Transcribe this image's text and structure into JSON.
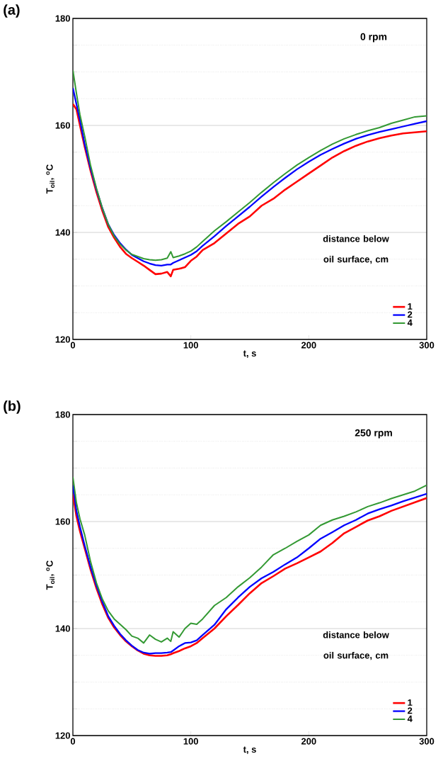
{
  "chart_data": [
    {
      "type": "line",
      "title": "(a)",
      "xlabel": "t, s",
      "ylabel": "T$_{oil}$, $^{o}$C",
      "legend_title": "distance below oil surface, cm",
      "annotations": [
        "0 rpm"
      ],
      "legend": "bottom right",
      "grid": "y",
      "xlim": [
        0,
        300
      ],
      "ylim": [
        120,
        180
      ],
      "xticks": [
        0,
        100,
        200,
        300
      ],
      "yticks": [
        120,
        {
          "value": 125,
          "label": null
        },
        {
          "value": 130,
          "label": null
        },
        {
          "value": 135,
          "label": null
        },
        140,
        {
          "value": 145,
          "label": null
        },
        {
          "value": 150,
          "label": null
        },
        {
          "value": 155,
          "label": null
        },
        160,
        {
          "value": 165,
          "label": null
        },
        {
          "value": 170,
          "label": null
        },
        {
          "value": 175,
          "label": null
        },
        180
      ],
      "x": [
        0,
        3,
        6,
        10,
        15,
        20,
        25,
        30,
        35,
        40,
        45,
        50,
        55,
        60,
        65,
        70,
        75,
        80,
        83,
        85,
        90,
        95,
        100,
        105,
        110,
        120,
        130,
        140,
        150,
        160,
        170,
        180,
        190,
        200,
        210,
        220,
        230,
        240,
        250,
        260,
        270,
        280,
        290,
        300
      ],
      "series": [
        {
          "name": "1",
          "color": "#ff0000",
          "values": [
            164,
            163,
            160,
            156,
            151.5,
            147.5,
            144,
            141,
            139,
            137.3,
            136,
            135.2,
            134.5,
            133.8,
            133,
            132.2,
            132.3,
            132.6,
            131.8,
            133,
            133.2,
            133.5,
            134.7,
            135.5,
            136.7,
            138,
            139.8,
            141.6,
            143,
            145,
            146.3,
            148,
            149.5,
            151,
            152.5,
            154,
            155.2,
            156.2,
            157,
            157.6,
            158.1,
            158.5,
            158.7,
            158.9
          ]
        },
        {
          "name": "2",
          "color": "#0000ff",
          "values": [
            167,
            164,
            161,
            156.5,
            152,
            148,
            144.5,
            141.5,
            139.5,
            138,
            136.8,
            135.8,
            135.2,
            134.6,
            134.2,
            133.9,
            133.8,
            134,
            134,
            134.3,
            134.8,
            135.3,
            135.8,
            136.5,
            137.5,
            139.3,
            141.2,
            143,
            144.8,
            146.7,
            148.5,
            150.2,
            151.8,
            153.2,
            154.5,
            155.6,
            156.6,
            157.5,
            158.2,
            158.8,
            159.3,
            159.8,
            160.3,
            160.8
          ]
        },
        {
          "name": "4",
          "color": "#339933",
          "values": [
            170.3,
            166,
            162,
            158,
            152.5,
            148.2,
            144.5,
            141.5,
            139.3,
            137.8,
            136.7,
            135.9,
            135.5,
            135.1,
            134.9,
            134.8,
            134.9,
            135.2,
            136.4,
            135.3,
            135.6,
            136,
            136.5,
            137.3,
            138.3,
            140.3,
            142,
            143.8,
            145.6,
            147.5,
            149.3,
            151,
            152.6,
            154,
            155.3,
            156.5,
            157.5,
            158.3,
            159,
            159.6,
            160.4,
            161,
            161.6,
            161.8
          ]
        }
      ]
    },
    {
      "type": "line",
      "title": "(b)",
      "xlabel": "t, s",
      "ylabel": "T$_{oil}$, $^{o}$C",
      "legend_title": "distance below oil surface, cm",
      "annotations": [
        "250 rpm"
      ],
      "legend": "bottom right",
      "grid": "y",
      "xlim": [
        0,
        300
      ],
      "ylim": [
        120,
        180
      ],
      "xticks": [
        0,
        100,
        200,
        300
      ],
      "yticks": [
        120,
        {
          "value": 125,
          "label": null
        },
        {
          "value": 130,
          "label": null
        },
        {
          "value": 135,
          "label": null
        },
        140,
        {
          "value": 145,
          "label": null
        },
        {
          "value": 150,
          "label": null
        },
        {
          "value": 155,
          "label": null
        },
        160,
        {
          "value": 165,
          "label": null
        },
        {
          "value": 170,
          "label": null
        },
        {
          "value": 175,
          "label": null
        },
        180
      ],
      "x": [
        0,
        3,
        6,
        10,
        15,
        20,
        25,
        30,
        35,
        40,
        45,
        50,
        55,
        60,
        65,
        70,
        75,
        80,
        83,
        85,
        90,
        95,
        100,
        105,
        110,
        120,
        130,
        140,
        150,
        160,
        170,
        180,
        190,
        200,
        210,
        220,
        230,
        240,
        250,
        260,
        270,
        280,
        290,
        300
      ],
      "series": [
        {
          "name": "1",
          "color": "#ff0000",
          "values": [
            165.2,
            161,
            158.2,
            155,
            151,
            147.5,
            144.5,
            142,
            140.2,
            138.8,
            137.6,
            136.7,
            135.9,
            135.3,
            135,
            134.9,
            134.9,
            135,
            135.2,
            135.4,
            135.8,
            136.3,
            136.7,
            137.3,
            138.2,
            140,
            142.3,
            144.4,
            146.6,
            148.5,
            149.8,
            151.2,
            152.2,
            153.3,
            154.4,
            156,
            157.8,
            159,
            160.2,
            161,
            162,
            162.8,
            163.6,
            164.4
          ]
        },
        {
          "name": "2",
          "color": "#0000ff",
          "values": [
            166.8,
            162,
            159,
            155.5,
            151.5,
            148,
            145,
            142.3,
            140.5,
            139,
            137.8,
            136.8,
            136,
            135.5,
            135.3,
            135.4,
            135.4,
            135.5,
            135.6,
            135.9,
            136.7,
            137.3,
            137.4,
            137.8,
            138.8,
            140.7,
            143.6,
            145.8,
            147.8,
            149.4,
            150.6,
            152,
            153.3,
            155,
            156.8,
            158,
            159.3,
            160.3,
            161.5,
            162.3,
            163,
            163.8,
            164.5,
            165.2
          ]
        },
        {
          "name": "4",
          "color": "#339933",
          "values": [
            168.3,
            163.5,
            160.5,
            157.5,
            152.5,
            148.5,
            145.5,
            143.3,
            141.8,
            140.8,
            139.8,
            138.6,
            138.2,
            137.3,
            138.8,
            138,
            137.5,
            138.2,
            137.6,
            139.4,
            138.4,
            140,
            141,
            140.8,
            141.8,
            144.3,
            145.8,
            147.8,
            149.5,
            151.5,
            153.8,
            155,
            156.3,
            157.5,
            159.3,
            160.3,
            161,
            161.8,
            162.8,
            163.5,
            164.3,
            165,
            165.7,
            166.8
          ]
        }
      ]
    }
  ]
}
